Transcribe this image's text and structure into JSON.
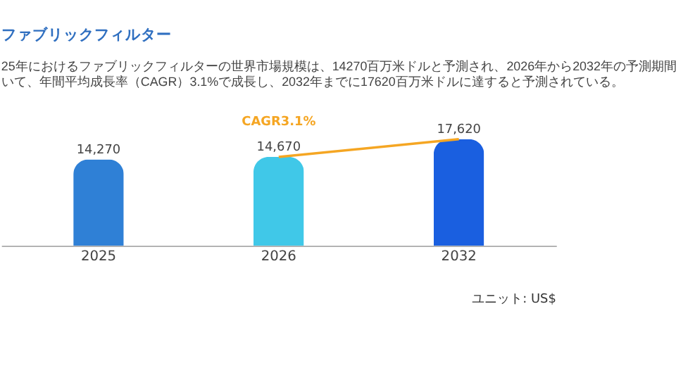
{
  "chart_data": {
    "type": "bar",
    "title": "ファブリックフィルター",
    "subtitle": [
      "25年におけるファブリックフィルターの世界市場規模は、14270百万米ドルと予測され、2026年から2032年の予測期間",
      "いて、年間平均成長率（CAGR）3.1%で成長し、2032年までに17620百万米ドルに達すると予測されている。"
    ],
    "categories": [
      "2025",
      "2026",
      "2032"
    ],
    "values": [
      14270,
      14670,
      17620
    ],
    "colors": [
      "#2f80d6",
      "#40c8e8",
      "#1a5fe0"
    ],
    "data_labels": true,
    "value_labels": [
      "14,270",
      "14,670",
      "17,620"
    ],
    "annotations": [
      "CAGR3.1%",
      "ユニット: US$"
    ],
    "grid": false,
    "tick_labels": "x"
  }
}
